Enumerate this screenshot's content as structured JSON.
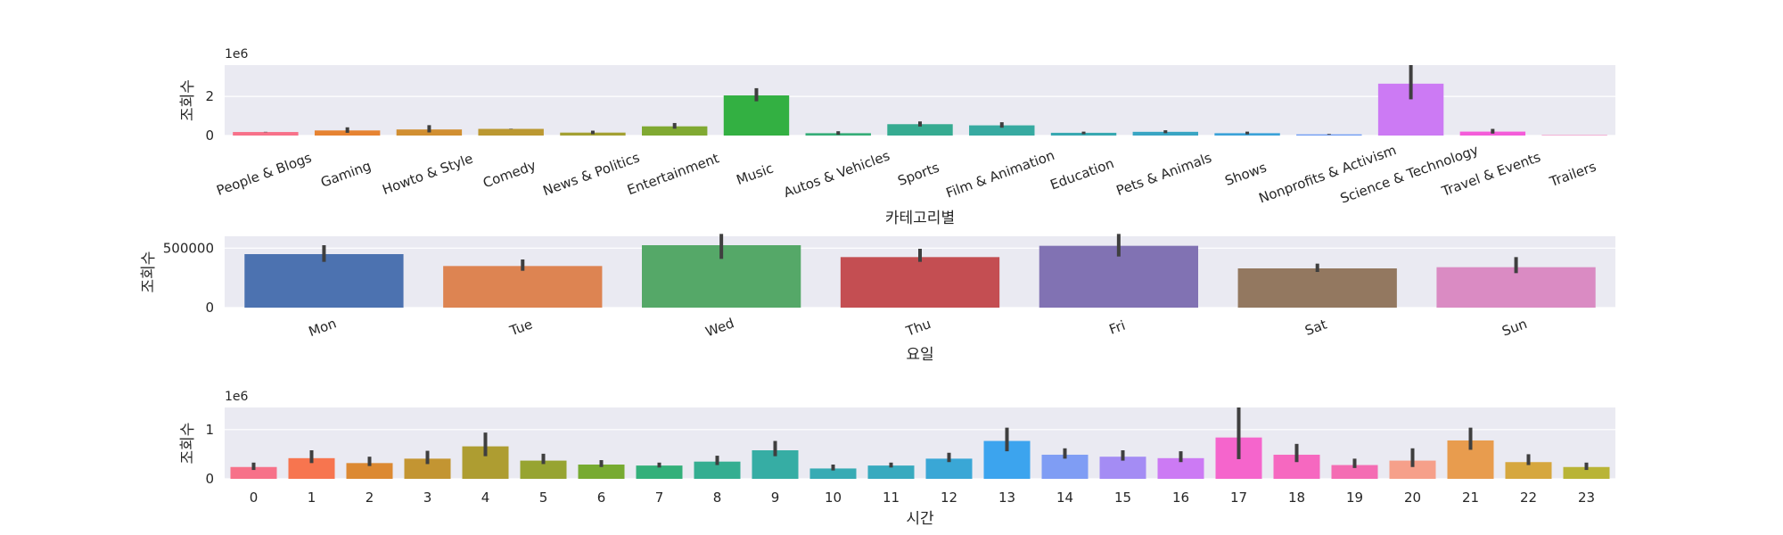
{
  "chart_data": [
    {
      "type": "bar",
      "xlabel": "카테고리별",
      "ylabel": "조회수",
      "y_multiplier_label": "1e6",
      "ylim": [
        0,
        3.6
      ],
      "yticks": [
        0,
        2
      ],
      "grid": true,
      "tick_rotation": -20,
      "categories": [
        "People & Blogs",
        "Gaming",
        "Howto & Style",
        "Comedy",
        "News & Politics",
        "Entertainment",
        "Music",
        "Autos & Vehicles",
        "Sports",
        "Film & Animation",
        "Education",
        "Pets & Animals",
        "Shows",
        "Nonprofits & Activism",
        "Science & Technology",
        "Travel & Events",
        "Trailers"
      ],
      "values": [
        0.18,
        0.26,
        0.31,
        0.34,
        0.15,
        0.47,
        2.05,
        0.12,
        0.58,
        0.52,
        0.14,
        0.19,
        0.12,
        0.06,
        2.65,
        0.2,
        0.02
      ],
      "ci_low": [
        0.17,
        0.14,
        0.16,
        0.33,
        0.07,
        0.35,
        1.75,
        0.04,
        0.46,
        0.4,
        0.07,
        0.12,
        0.06,
        0.04,
        1.85,
        0.1,
        0.02
      ],
      "ci_high": [
        0.19,
        0.42,
        0.53,
        0.35,
        0.25,
        0.64,
        2.42,
        0.22,
        0.72,
        0.68,
        0.2,
        0.27,
        0.2,
        0.08,
        3.6,
        0.34,
        0.02
      ],
      "colors": [
        "#f77189",
        "#e68332",
        "#d18f32",
        "#bb9832",
        "#a3a032",
        "#80a932",
        "#33b042",
        "#35ad77",
        "#36ab91",
        "#37aaa1",
        "#38a8b1",
        "#39a5c3",
        "#3ba2d8",
        "#6e9bf4",
        "#cc7af4",
        "#f45cd9",
        "#f56db0"
      ]
    },
    {
      "type": "bar",
      "xlabel": "요일",
      "ylabel": "조회수",
      "ylim": [
        0,
        600000
      ],
      "yticks": [
        0,
        500000
      ],
      "grid": true,
      "tick_rotation": -20,
      "categories": [
        "Mon",
        "Tue",
        "Wed",
        "Thu",
        "Fri",
        "Sat",
        "Sun"
      ],
      "values": [
        450000,
        350000,
        525000,
        425000,
        520000,
        330000,
        340000
      ],
      "ci_low": [
        385000,
        310000,
        410000,
        385000,
        430000,
        300000,
        290000
      ],
      "ci_high": [
        525000,
        405000,
        620000,
        495000,
        620000,
        370000,
        425000
      ],
      "colors": [
        "#4c72b0",
        "#dd8452",
        "#55a868",
        "#c44e52",
        "#8172b3",
        "#937860",
        "#da8bc3"
      ]
    },
    {
      "type": "bar",
      "xlabel": "시간",
      "ylabel": "조회수",
      "y_multiplier_label": "1e6",
      "ylim": [
        0,
        1.45
      ],
      "yticks": [
        0,
        1
      ],
      "grid": true,
      "categories": [
        "0",
        "1",
        "2",
        "3",
        "4",
        "5",
        "6",
        "7",
        "8",
        "9",
        "10",
        "11",
        "12",
        "13",
        "14",
        "15",
        "16",
        "17",
        "18",
        "19",
        "20",
        "21",
        "22",
        "23"
      ],
      "values": [
        0.24,
        0.42,
        0.32,
        0.41,
        0.66,
        0.37,
        0.29,
        0.27,
        0.35,
        0.58,
        0.21,
        0.27,
        0.41,
        0.77,
        0.49,
        0.45,
        0.42,
        0.84,
        0.49,
        0.28,
        0.37,
        0.78,
        0.34,
        0.24
      ],
      "ci_low": [
        0.18,
        0.32,
        0.26,
        0.3,
        0.46,
        0.3,
        0.24,
        0.23,
        0.28,
        0.46,
        0.17,
        0.23,
        0.34,
        0.56,
        0.41,
        0.37,
        0.34,
        0.4,
        0.34,
        0.22,
        0.24,
        0.59,
        0.28,
        0.18
      ],
      "ci_high": [
        0.33,
        0.58,
        0.45,
        0.57,
        0.94,
        0.51,
        0.38,
        0.33,
        0.47,
        0.77,
        0.29,
        0.33,
        0.53,
        1.04,
        0.62,
        0.58,
        0.56,
        1.45,
        0.71,
        0.41,
        0.62,
        1.04,
        0.5,
        0.33
      ],
      "colors": [
        "#f77189",
        "#f7754f",
        "#dc8932",
        "#c39532",
        "#ae9d31",
        "#97a431",
        "#77ab31",
        "#33b07a",
        "#34ae91",
        "#36ada4",
        "#37abb4",
        "#38aabf",
        "#3aa7d6",
        "#3ca4ee",
        "#7f9df4",
        "#a48cf4",
        "#cc7af4",
        "#f565cc",
        "#f668c0",
        "#f46cb3",
        "#f6a08a",
        "#e89c4e",
        "#d6a73e",
        "#b9b436"
      ]
    }
  ]
}
